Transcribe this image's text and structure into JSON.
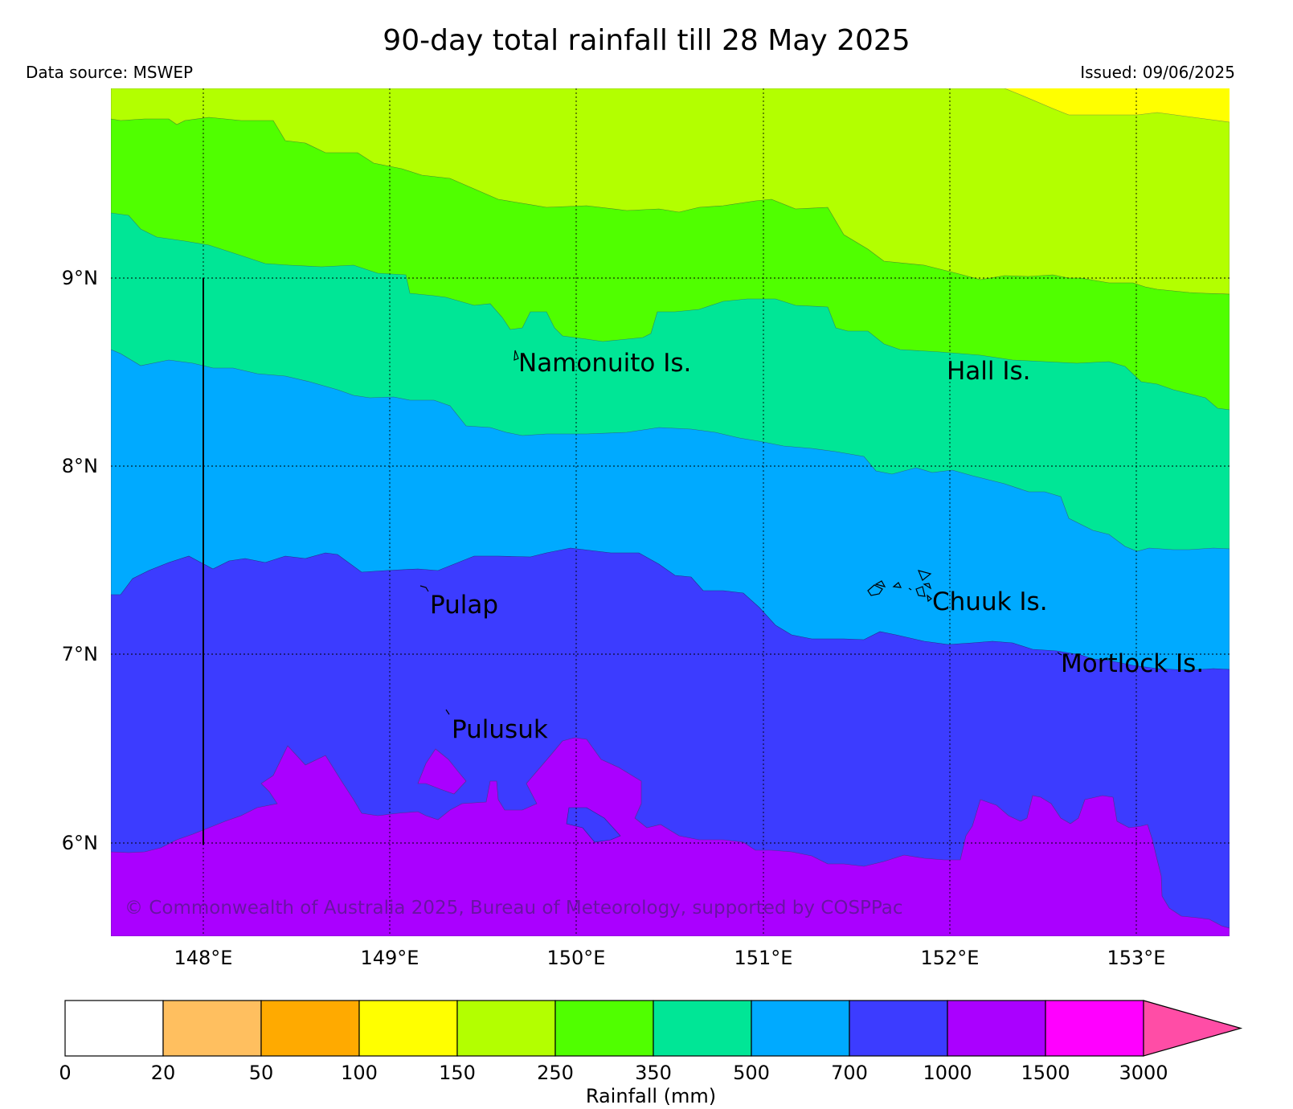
{
  "title": "90-day total rainfall till 28 May 2025",
  "data_source": "Data source: MSWEP",
  "issued": "Issued: 09/06/2025",
  "copyright": "© Commonwealth of Australia 2025, Bureau of Meteorology, supported by COSPPac",
  "map": {
    "lon_ticks": [
      "148°E",
      "149°E",
      "150°E",
      "151°E",
      "152°E",
      "153°E"
    ],
    "lat_ticks": [
      "9°N",
      "8°N",
      "7°N",
      "6°N"
    ],
    "places": [
      {
        "name": "Namonuito Is."
      },
      {
        "name": "Hall Is."
      },
      {
        "name": "Pulap"
      },
      {
        "name": "Chuuk Is."
      },
      {
        "name": "Mortlock Is."
      },
      {
        "name": "Pulusuk"
      }
    ]
  },
  "colorbar": {
    "label": "Rainfall (mm)",
    "ticks": [
      "0",
      "20",
      "50",
      "100",
      "150",
      "250",
      "350",
      "500",
      "700",
      "1000",
      "1500",
      "3000"
    ],
    "colors": [
      "#ffffff",
      "#ffbf5f",
      "#ffaa00",
      "#ffff00",
      "#b3ff00",
      "#50ff00",
      "#00e696",
      "#00aaff",
      "#3c3cff",
      "#aa00ff",
      "#ff00ff",
      "#ff4da6"
    ]
  }
}
